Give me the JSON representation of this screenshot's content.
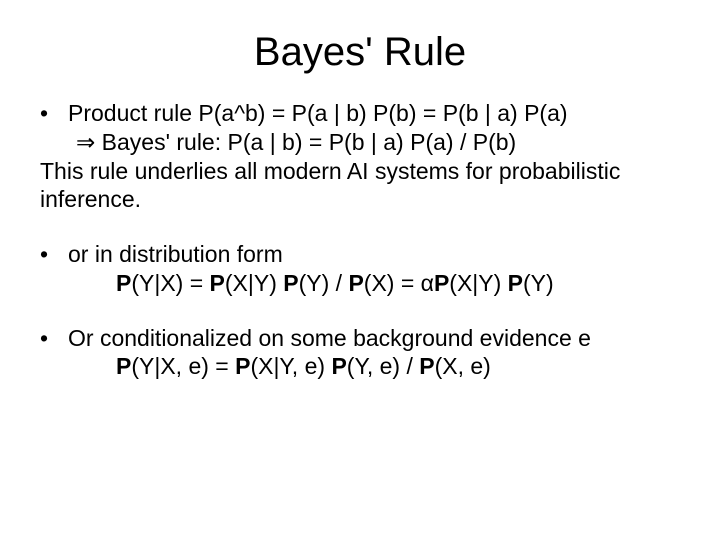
{
  "title": "Bayes' Rule",
  "lines": {
    "l1": "Product rule P(a^b) = P(a | b) P(b) = P(b | a) P(a)",
    "l2a": "⇒",
    "l2b": " Bayes' rule: P(a | b) = P(b | a) P(a) / P(b)",
    "l3": "This rule underlies all modern AI systems for probabilistic inference.",
    "l4": "or in distribution form",
    "l5a": "P",
    "l5b": "(Y|X) = ",
    "l5c": "P",
    "l5d": "(X|Y) ",
    "l5e": "P",
    "l5f": "(Y) / ",
    "l5g": "P",
    "l5h": "(X) = α",
    "l5i": "P",
    "l5j": "(X|Y) ",
    "l5k": "P",
    "l5l": "(Y)",
    "l6": "Or conditionalized on some background evidence e",
    "l7a": "P",
    "l7b": "(Y|X, e) = ",
    "l7c": "P",
    "l7d": "(X|Y, e) ",
    "l7e": "P",
    "l7f": "(Y, e) / ",
    "l7g": "P",
    "l7h": "(X, e)"
  },
  "style": {
    "background_color": "#ffffff",
    "text_color": "#000000",
    "title_fontsize": 40,
    "body_fontsize": 23,
    "font_family": "Arial"
  }
}
